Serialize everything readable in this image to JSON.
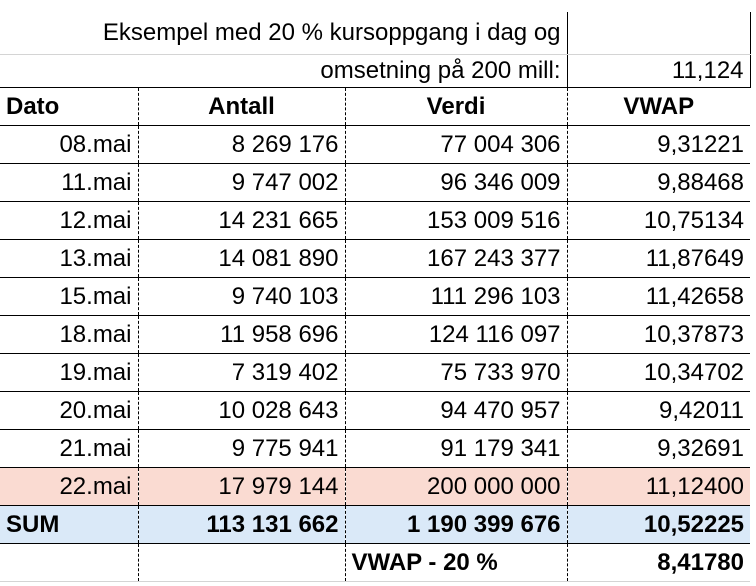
{
  "intro": {
    "line1": "Eksempel med 20 % kursoppgang i dag og",
    "line2": "omsetning på 200 mill:",
    "value": "11,124"
  },
  "table": {
    "header": [
      "Dato",
      "Antall",
      "Verdi",
      "VWAP"
    ],
    "rows": [
      [
        "08.mai",
        "8 269 176",
        "77 004 306",
        "9,31221"
      ],
      [
        "11.mai",
        "9 747 002",
        "96 346 009",
        "9,88468"
      ],
      [
        "12.mai",
        "14 231 665",
        "153 009 516",
        "10,75134"
      ],
      [
        "13.mai",
        "14 081 890",
        "167 243 377",
        "11,87649"
      ],
      [
        "15.mai",
        "9 740 103",
        "111 296 103",
        "11,42658"
      ],
      [
        "18.mai",
        "11 958 696",
        "124 116 097",
        "10,37873"
      ],
      [
        "19.mai",
        "7 319 402",
        "75 733 970",
        "10,34702"
      ],
      [
        "20.mai",
        "10 028 643",
        "94 470 957",
        "9,42011"
      ],
      [
        "21.mai",
        "9 775 941",
        "91 179 341",
        "9,32691"
      ],
      [
        "22.mai",
        "17 979 144",
        "200 000 000",
        "11,12400"
      ]
    ],
    "sum": [
      "SUM",
      "113 131 662",
      "1 190 399 676",
      "10,52225"
    ],
    "footer": {
      "label": "VWAP - 20 %",
      "value": "8,41780"
    }
  }
}
